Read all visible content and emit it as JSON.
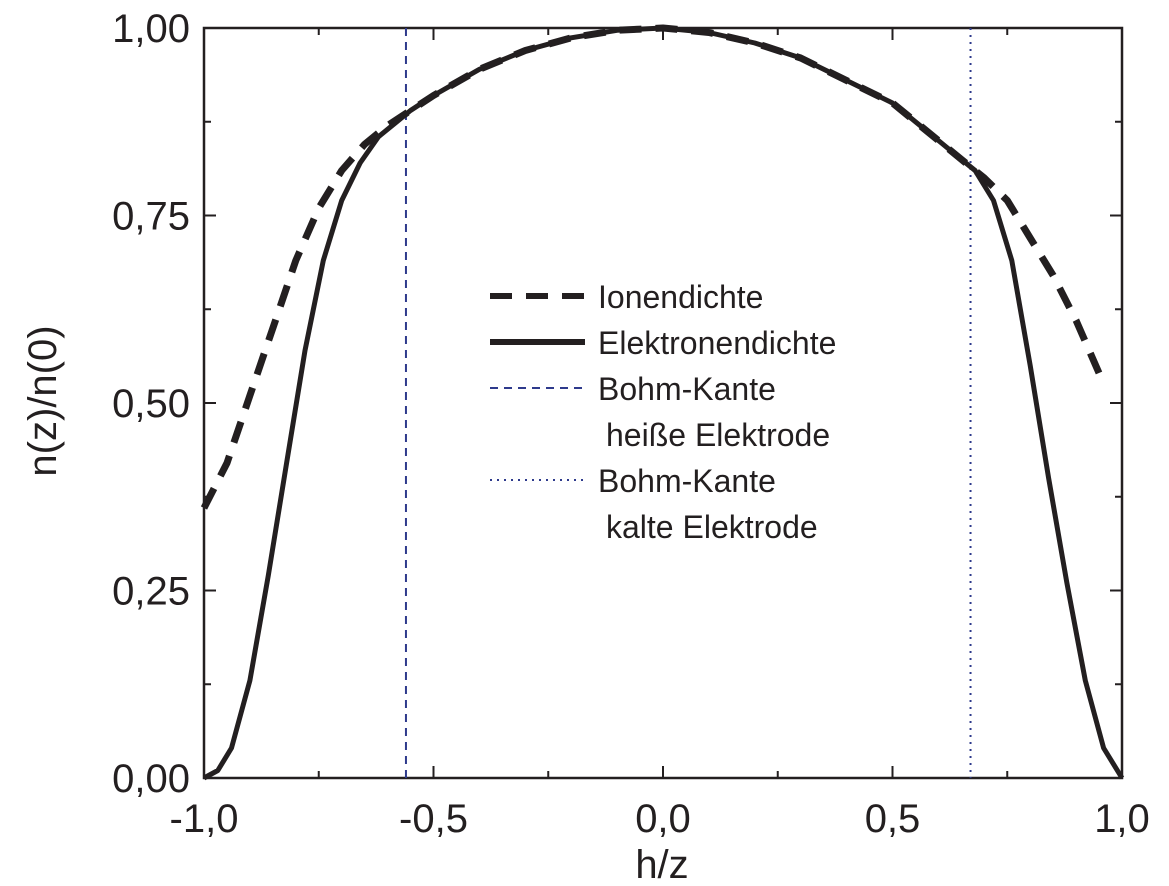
{
  "chart_data": {
    "type": "line",
    "xlabel": "h/z",
    "ylabel": "n(z)/n(0)",
    "xlim": [
      -1.0,
      1.0
    ],
    "ylim": [
      0.0,
      1.0
    ],
    "x_ticks": [
      -1.0,
      -0.5,
      0.0,
      0.5,
      1.0
    ],
    "x_tick_labels": [
      "-1,0",
      "-0,5",
      "0,0",
      "0,5",
      "1,0"
    ],
    "y_ticks": [
      0.0,
      0.25,
      0.5,
      0.75,
      1.0
    ],
    "y_tick_labels": [
      "0,00",
      "0,25",
      "0,50",
      "0,75",
      "1,00"
    ],
    "grid": false,
    "legend_position": "center",
    "series": [
      {
        "name": "Ionendichte",
        "style": "dashed",
        "color": "#231f20",
        "x": [
          -1.0,
          -0.95,
          -0.9,
          -0.85,
          -0.8,
          -0.75,
          -0.7,
          -0.65,
          -0.6,
          -0.55,
          -0.5,
          -0.4,
          -0.3,
          -0.2,
          -0.1,
          0.0,
          0.1,
          0.2,
          0.3,
          0.4,
          0.5,
          0.55,
          0.6,
          0.65,
          0.7,
          0.75,
          0.8,
          0.85,
          0.9,
          0.95
        ],
        "y": [
          0.36,
          0.42,
          0.51,
          0.6,
          0.69,
          0.76,
          0.81,
          0.845,
          0.87,
          0.89,
          0.91,
          0.945,
          0.97,
          0.987,
          0.997,
          1.0,
          0.994,
          0.98,
          0.96,
          0.93,
          0.9,
          0.875,
          0.85,
          0.825,
          0.8,
          0.77,
          0.72,
          0.67,
          0.61,
          0.54
        ]
      },
      {
        "name": "Elektronendichte",
        "style": "solid",
        "color": "#231f20",
        "x": [
          -1.0,
          -0.97,
          -0.94,
          -0.9,
          -0.86,
          -0.82,
          -0.78,
          -0.74,
          -0.7,
          -0.66,
          -0.62,
          -0.58,
          -0.55,
          -0.5,
          -0.4,
          -0.3,
          -0.2,
          -0.1,
          0.0,
          0.1,
          0.2,
          0.3,
          0.4,
          0.5,
          0.55,
          0.6,
          0.65,
          0.68,
          0.72,
          0.76,
          0.8,
          0.84,
          0.88,
          0.92,
          0.96,
          1.0
        ],
        "y": [
          0.0,
          0.01,
          0.04,
          0.13,
          0.27,
          0.42,
          0.57,
          0.69,
          0.77,
          0.82,
          0.855,
          0.875,
          0.89,
          0.91,
          0.945,
          0.97,
          0.987,
          0.997,
          1.0,
          0.994,
          0.98,
          0.96,
          0.93,
          0.9,
          0.875,
          0.85,
          0.825,
          0.81,
          0.77,
          0.69,
          0.55,
          0.4,
          0.26,
          0.13,
          0.04,
          0.0
        ]
      }
    ],
    "vlines": [
      {
        "name": "Bohm-Kante\nheiße Elektrode",
        "x": -0.56,
        "style": "dashed",
        "color": "#2e3a8c"
      },
      {
        "name": "Bohm-Kante\nkalte Elektrode",
        "x": 0.67,
        "style": "dotted",
        "color": "#2e3a8c"
      }
    ],
    "legend": [
      {
        "label": "Ionendichte",
        "style": "dashed",
        "color": "#231f20"
      },
      {
        "label": "Elektronendichte",
        "style": "solid",
        "color": "#231f20"
      },
      {
        "label": "Bohm-Kante",
        "label2": "heiße Elektrode",
        "style": "dashed",
        "color": "#2e3a8c"
      },
      {
        "label": "Bohm-Kante",
        "label2": "kalte Elektrode",
        "style": "dotted",
        "color": "#2e3a8c"
      }
    ]
  }
}
